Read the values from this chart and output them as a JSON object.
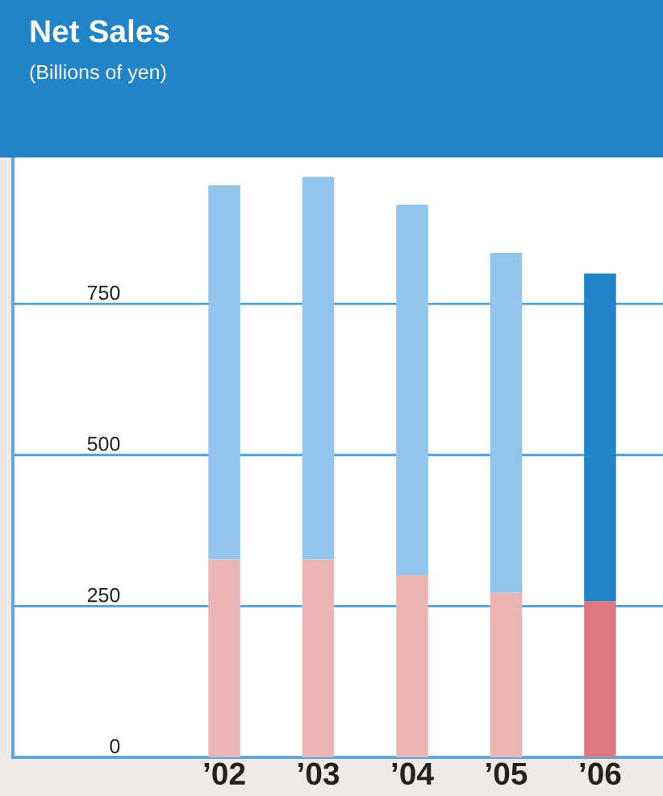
{
  "chart_data": {
    "type": "bar",
    "title": "Net Sales",
    "subtitle": "(Billions of yen)",
    "stacked": true,
    "categories": [
      "’02",
      "’03",
      "’04",
      "’05",
      "’06"
    ],
    "series": [
      {
        "colors": [
          "#ebb5b5",
          "#ebb5b5",
          "#ebb5b5",
          "#ebb5b5",
          "#de7880"
        ],
        "values": [
          327,
          327,
          301,
          272,
          258
        ]
      },
      {
        "colors": [
          "#93c5ec",
          "#93c5ec",
          "#93c5ec",
          "#93c5ec",
          "#2183c8"
        ],
        "values": [
          619,
          633,
          613,
          562,
          542
        ]
      }
    ],
    "ylim": [
      0,
      994
    ],
    "yticks": [
      0,
      250,
      500,
      750
    ],
    "grid": "y",
    "legend": false
  }
}
